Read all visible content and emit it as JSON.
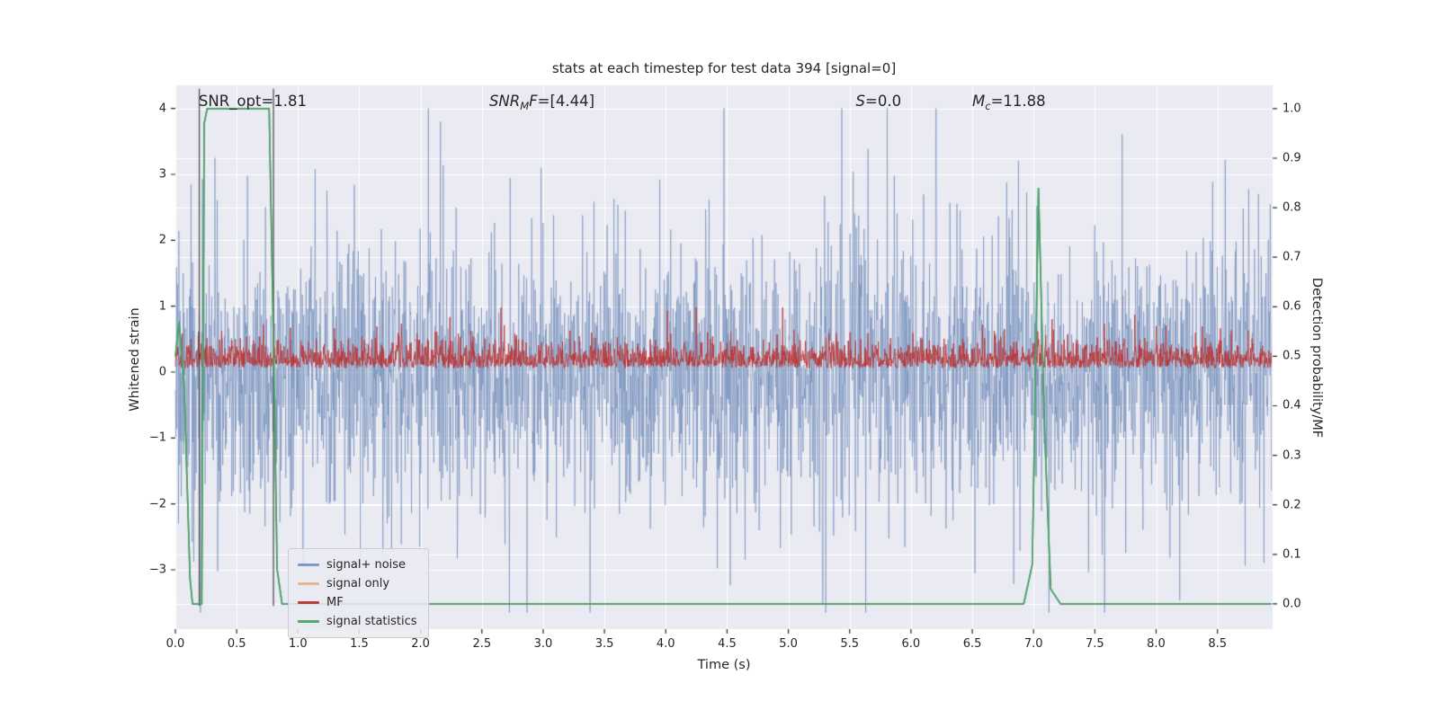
{
  "figure": {
    "title": "stats at each timestep for test data 394 [signal=0]",
    "xlabel": "Time (s)",
    "ylabel_left": "Whitened strain",
    "ylabel_right": "Detection probability/MF"
  },
  "annotations": {
    "snr_opt": {
      "text": "SNR_opt=1.81"
    },
    "snr_mf": {
      "pre": "SNR",
      "sub": "M",
      "mid": "F",
      "post": "=[4.44]"
    },
    "s": {
      "pre": "S",
      "post": "=0.0"
    },
    "mc": {
      "pre": "M",
      "sub": "c",
      "post": "=11.88"
    }
  },
  "legend": {
    "items": [
      {
        "label": "signal+ noise",
        "color": "#7b9bc8"
      },
      {
        "label": "signal only",
        "color": "#edb48c"
      },
      {
        "label": "MF",
        "color": "#c03d3e"
      },
      {
        "label": "signal statistics",
        "color": "#55a868"
      }
    ]
  },
  "chart_data": {
    "type": "line",
    "title": "stats at each timestep for test data 394 [signal=0]",
    "background": "#eaeaf2",
    "grid": true,
    "x_axis": {
      "label": "Time (s)",
      "min": 0,
      "max": 8.95,
      "data_max": 8.94,
      "tick_values": [
        0,
        0.5,
        1,
        1.5,
        2,
        2.5,
        3,
        3.5,
        4,
        4.5,
        5,
        5.5,
        6,
        6.5,
        7,
        7.5,
        8,
        8.5
      ],
      "tick_labels": [
        "0.0",
        "0.5",
        "1.0",
        "1.5",
        "2.0",
        "2.5",
        "3.0",
        "3.5",
        "4.0",
        "4.5",
        "5.0",
        "5.5",
        "6.0",
        "6.5",
        "7.0",
        "7.5",
        "8.0",
        "8.5"
      ]
    },
    "y_left": {
      "label": "Whitened strain",
      "min": -3.9,
      "max": 4.35,
      "tick_values": [
        4,
        3,
        2,
        1,
        0,
        -1,
        -2,
        -3
      ],
      "tick_labels": [
        "4",
        "3",
        "2",
        "1",
        "0",
        "−1",
        "−2",
        "−3"
      ]
    },
    "y_right": {
      "label": "Detection probability/MF",
      "min": -0.051,
      "max": 1.047,
      "tick_values": [
        1.0,
        0.9,
        0.8,
        0.7,
        0.6,
        0.5,
        0.4,
        0.3,
        0.2,
        0.1,
        0.0
      ],
      "tick_labels": [
        "1.0",
        "0.9",
        "0.8",
        "0.7",
        "0.6",
        "0.5",
        "0.4",
        "0.3",
        "0.2",
        "0.1",
        "0.0"
      ]
    },
    "series": [
      {
        "name": "signal+ noise",
        "type": "noise",
        "axis": "left",
        "color": "rgba(106,136,183,0.72)",
        "seed": 20394,
        "n": 2800,
        "std": 0.92,
        "spike_prob": 0.12,
        "spike_scale": 1.85,
        "rare_prob": 0.012,
        "rare_scale": 2.6,
        "clip": [
          -3.65,
          4.0
        ],
        "line_width": 0.8
      },
      {
        "name": "signal only",
        "type": "flat",
        "axis": "left",
        "color": "#edb48c",
        "value": 0.0,
        "hidden": true
      },
      {
        "name": "MF",
        "type": "abs_noise",
        "axis": "left",
        "color": "rgba(186,52,52,0.95)",
        "seed": 777,
        "n": 2600,
        "base": 0.06,
        "scale": 0.2,
        "spike_prob": 0.02,
        "spike_scale": 2.2,
        "clip": [
          0.03,
          0.98
        ],
        "line_width": 0.9
      },
      {
        "name": "signal statistics",
        "type": "keypoints",
        "axis": "right",
        "color": "#4da167",
        "line_width": 1.6,
        "points": [
          [
            0,
            0.5
          ],
          [
            0.03,
            0.57
          ],
          [
            0.07,
            0.45
          ],
          [
            0.12,
            0.05
          ],
          [
            0.14,
            0.0
          ],
          [
            0.215,
            0.0
          ],
          [
            0.235,
            0.97
          ],
          [
            0.26,
            1.0
          ],
          [
            0.765,
            1.0
          ],
          [
            0.795,
            0.6
          ],
          [
            0.83,
            0.07
          ],
          [
            0.87,
            0.0
          ],
          [
            6.92,
            0.0
          ],
          [
            6.99,
            0.08
          ],
          [
            7.04,
            0.84
          ],
          [
            7.09,
            0.35
          ],
          [
            7.14,
            0.03
          ],
          [
            7.22,
            0.0
          ],
          [
            8.94,
            0.0
          ]
        ]
      }
    ],
    "vlines": {
      "x": [
        0.195,
        0.8
      ],
      "color": "rgba(55,55,55,0.85)",
      "from": -3.55,
      "to": 4.3,
      "line_width": 1.3
    },
    "annotations_x": {
      "snr_opt": 0.19,
      "snr_mf": 2.56,
      "s": 5.55,
      "mc": 6.5
    },
    "annotations_values": {
      "SNR_opt": 1.81,
      "SNR_MF": [
        4.44
      ],
      "S": 0.0,
      "M_c": 11.88
    }
  }
}
